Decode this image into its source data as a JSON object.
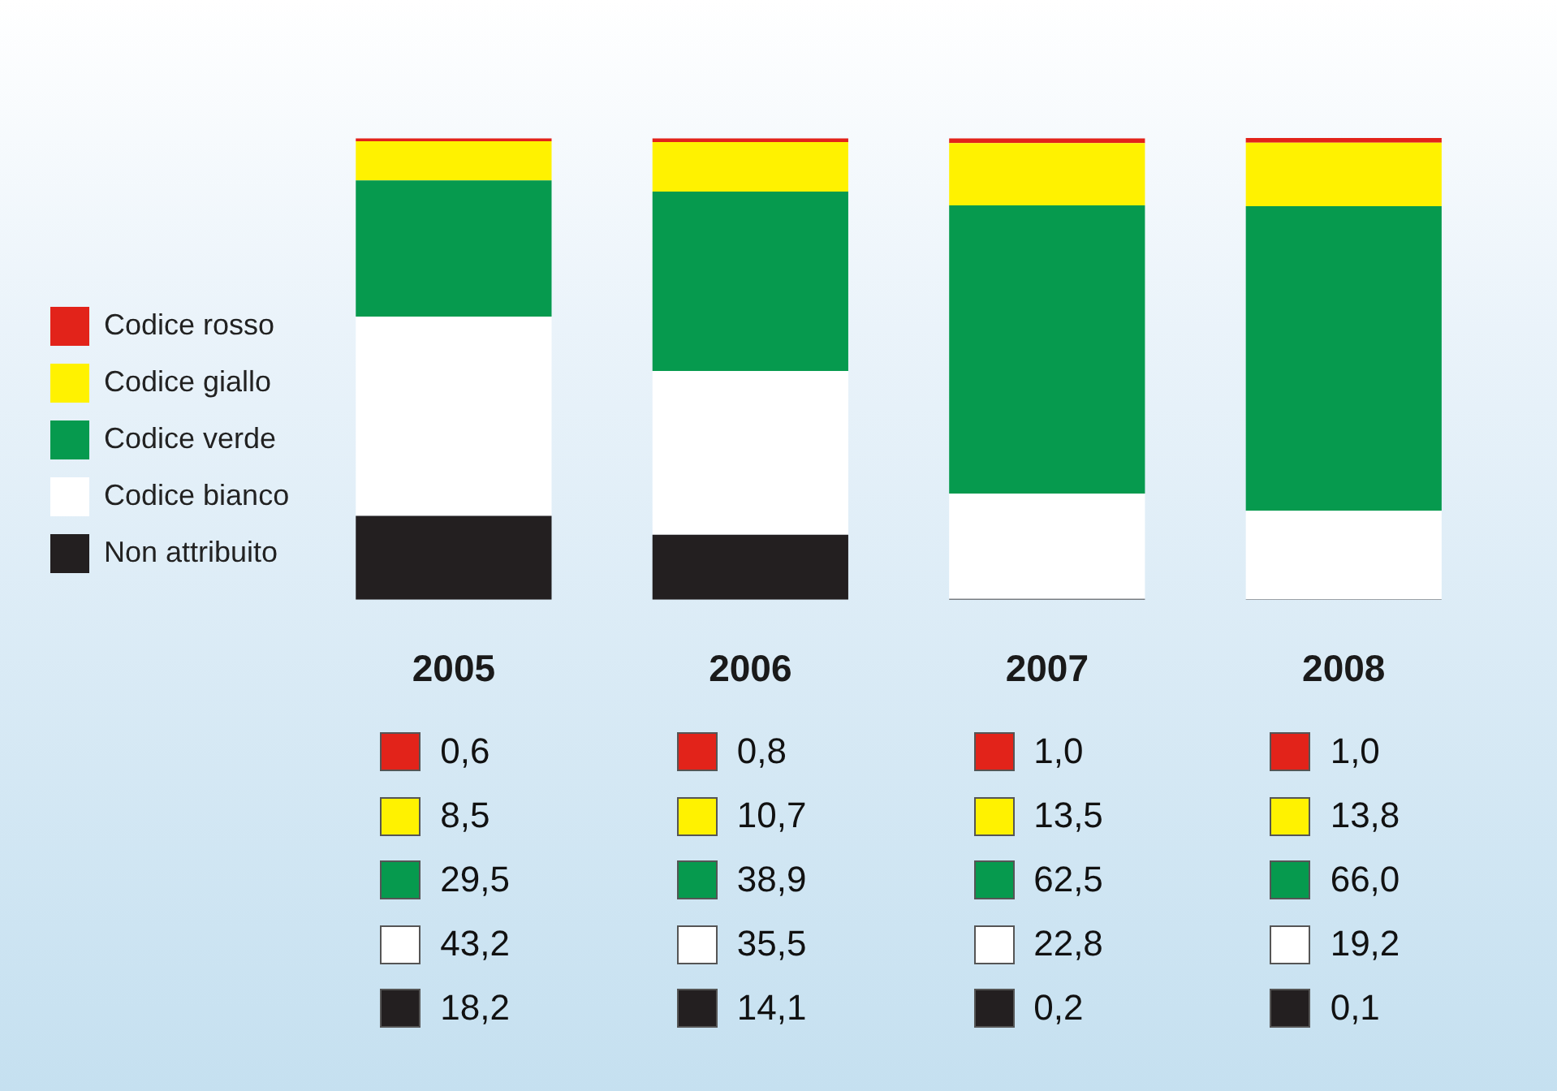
{
  "chart_data": {
    "type": "bar",
    "stacked": true,
    "categories": [
      "2005",
      "2006",
      "2007",
      "2008"
    ],
    "ylim": [
      0,
      100.1
    ],
    "tick_labels": "x",
    "grid": false,
    "legend": "left",
    "series": [
      {
        "name": "Non attribuito",
        "color": "#231f20",
        "values": [
          18.2,
          14.1,
          0.2,
          0.1
        ],
        "value_labels": [
          "18,2",
          "14,1",
          "0,2",
          "0,1"
        ]
      },
      {
        "name": "Codice bianco",
        "color": "#ffffff",
        "values": [
          43.2,
          35.5,
          22.8,
          19.2
        ],
        "value_labels": [
          "43,2",
          "35,5",
          "22,8",
          "19,2"
        ]
      },
      {
        "name": "Codice verde",
        "color": "#069a4e",
        "values": [
          29.5,
          38.9,
          62.5,
          66.0
        ],
        "value_labels": [
          "29,5",
          "38,9",
          "62,5",
          "66,0"
        ]
      },
      {
        "name": "Codice giallo",
        "color": "#fff200",
        "values": [
          8.5,
          10.7,
          13.5,
          13.8
        ],
        "value_labels": [
          "8,5",
          "10,7",
          "13,5",
          "13,8"
        ]
      },
      {
        "name": "Codice rosso",
        "color": "#e2231a",
        "values": [
          0.6,
          0.8,
          1.0,
          1.0
        ],
        "value_labels": [
          "0,6",
          "0,8",
          "1,0",
          "1,0"
        ]
      }
    ]
  }
}
